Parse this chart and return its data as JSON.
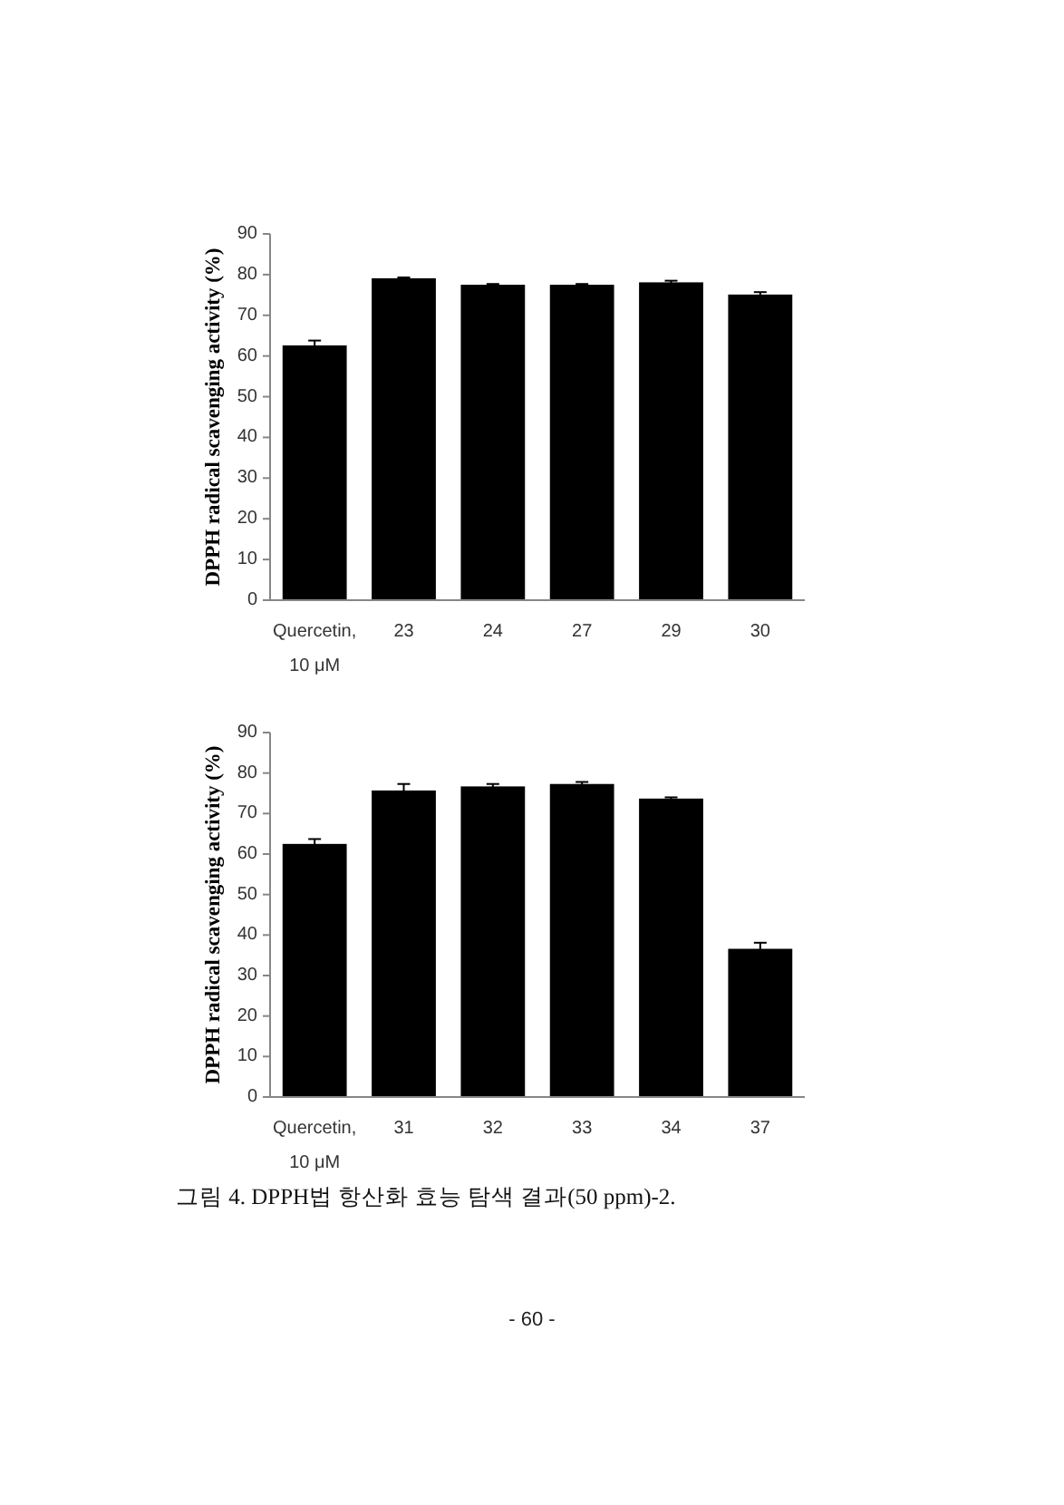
{
  "chart_data": [
    {
      "type": "bar",
      "ylabel": "DPPH radical scavenging activity (%)",
      "categories": [
        "Quercetin, 10 μM",
        "23",
        "24",
        "27",
        "29",
        "30"
      ],
      "values": [
        62.6,
        79.1,
        77.5,
        77.5,
        78.1,
        75.1
      ],
      "errors": [
        1.2,
        0.2,
        0.2,
        0.2,
        0.4,
        0.6
      ],
      "color": "#000000",
      "ylim": [
        0,
        90
      ],
      "yticks": [
        0,
        10,
        20,
        30,
        40,
        50,
        60,
        70,
        80,
        90
      ]
    },
    {
      "type": "bar",
      "ylabel": "DPPH radical scavenging activity (%)",
      "categories": [
        "Quercetin, 10 μM",
        "31",
        "32",
        "33",
        "34",
        "37"
      ],
      "values": [
        62.5,
        75.7,
        76.7,
        77.3,
        73.7,
        36.6
      ],
      "errors": [
        1.2,
        1.6,
        0.6,
        0.5,
        0.3,
        1.5
      ],
      "color": "#000000",
      "ylim": [
        0,
        90
      ],
      "yticks": [
        0,
        10,
        20,
        30,
        40,
        50,
        60,
        70,
        80,
        90
      ],
      "annotations": [
        "그림 4. DPPH법 항산화 효능 탐색 결과(50 ppm)-2.",
        "- 60 -"
      ]
    }
  ]
}
